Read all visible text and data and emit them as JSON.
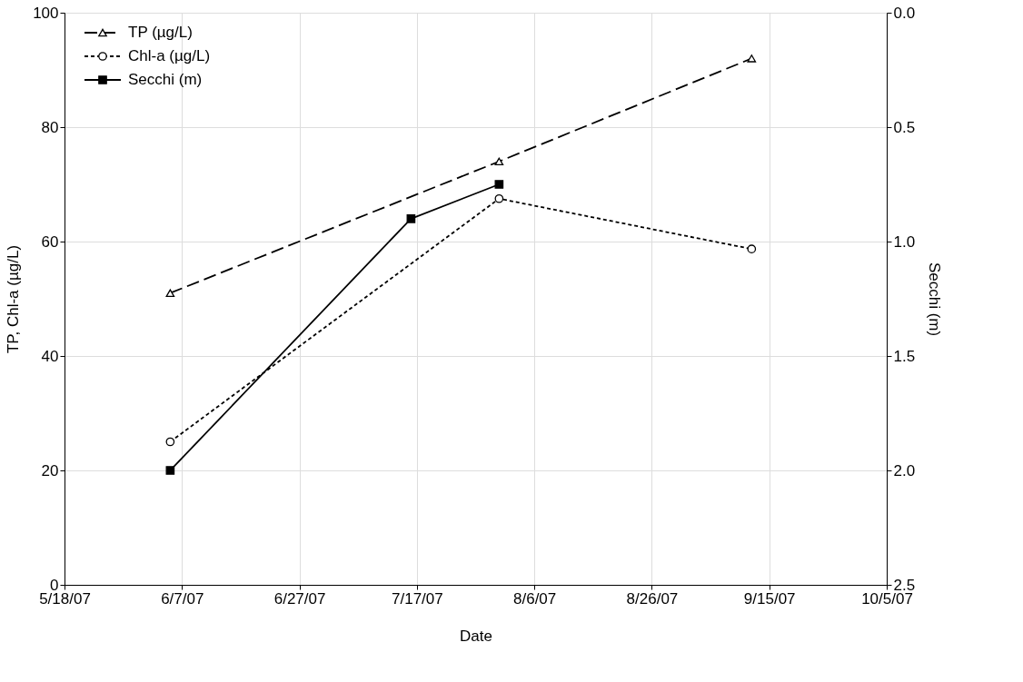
{
  "chart_data": {
    "type": "line",
    "xlabel": "Date",
    "ylabel": "TP, Chl-a (µg/L)",
    "y2label": "Secchi (m)",
    "x": [
      "2007-06-05",
      "2007-07-31",
      "2007-09-12"
    ],
    "series": [
      {
        "name": "TP (µg/L)",
        "color": "#000000",
        "values": [
          51,
          74,
          92
        ],
        "marker": "triangle",
        "line_style": "dashed"
      },
      {
        "name": "Chl-a (µg/L)",
        "color": "#000000",
        "values": [
          25,
          67.5,
          58.7
        ],
        "marker": "circle",
        "line_style": "dotted"
      },
      {
        "name": "Secchi (m)",
        "color": "#000000",
        "x": [
          "2007-06-05",
          "2007-07-16",
          "2007-07-31"
        ],
        "values": [
          2.0,
          0.9,
          0.75
        ],
        "marker": "square",
        "line_style": "solid",
        "axis": "y2"
      }
    ],
    "xlim": [
      "2007-05-18",
      "2007-10-05"
    ],
    "xticks": [
      {
        "value": "2007-05-18",
        "label": "5/18/07"
      },
      {
        "value": "2007-06-07",
        "label": "6/7/07"
      },
      {
        "value": "2007-06-27",
        "label": "6/27/07"
      },
      {
        "value": "2007-07-17",
        "label": "7/17/07"
      },
      {
        "value": "2007-08-06",
        "label": "8/6/07"
      },
      {
        "value": "2007-08-26",
        "label": "8/26/07"
      },
      {
        "value": "2007-09-15",
        "label": "9/15/07"
      },
      {
        "value": "2007-10-05",
        "label": "10/5/07"
      }
    ],
    "ylim": [
      0,
      100
    ],
    "yticks": [
      0,
      20,
      40,
      60,
      80,
      100
    ],
    "y2lim": [
      2.5,
      0
    ],
    "y2ticks": [
      {
        "value": 0,
        "label": "0.0"
      },
      {
        "value": 0.5,
        "label": "0.5"
      },
      {
        "value": 1,
        "label": "1.0"
      },
      {
        "value": 1.5,
        "label": "1.5"
      },
      {
        "value": 2,
        "label": "2.0"
      },
      {
        "value": 2.5,
        "label": "2.5"
      }
    ],
    "grid": true,
    "legend": "top left"
  }
}
